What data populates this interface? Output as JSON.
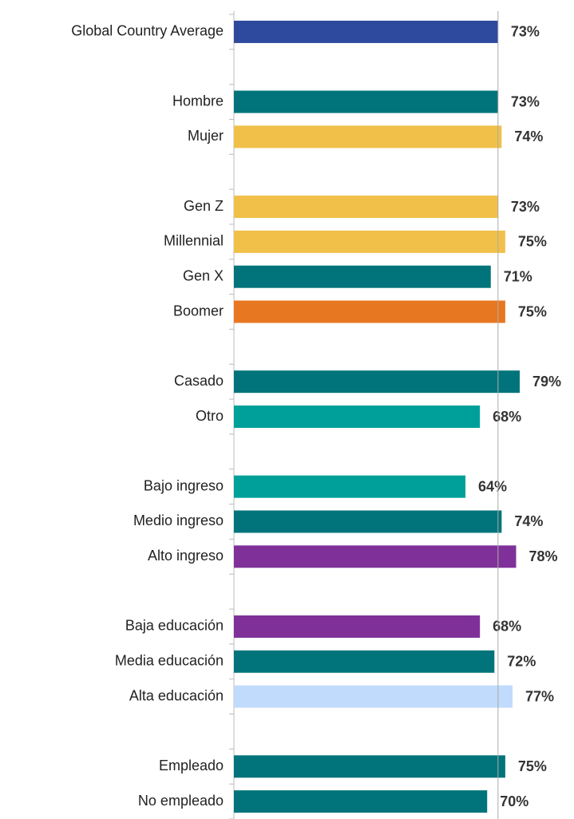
{
  "chart_data": {
    "type": "hbar",
    "categories": [
      "Global Country Average",
      null,
      "Hombre",
      "Mujer",
      null,
      "Gen Z",
      "Millennial",
      "Gen X",
      "Boomer",
      null,
      "Casado",
      "Otro",
      null,
      "Bajo ingreso",
      "Medio ingreso",
      "Alto ingreso",
      null,
      "Baja educación",
      "Media educación",
      "Alta educación",
      null,
      "Empleado",
      "No empleado"
    ],
    "values": [
      73,
      null,
      73,
      74,
      null,
      73,
      75,
      71,
      75,
      null,
      79,
      68,
      null,
      64,
      74,
      78,
      null,
      68,
      72,
      77,
      null,
      75,
      70
    ],
    "value_labels": [
      "73%",
      null,
      "73%",
      "74%",
      null,
      "73%",
      "75%",
      "71%",
      "75%",
      null,
      "79%",
      "68%",
      null,
      "64%",
      "74%",
      "78%",
      null,
      "68%",
      "72%",
      "77%",
      null,
      "75%",
      "70%"
    ],
    "colors": [
      "#2e4a9e",
      null,
      "#00747a",
      "#f0c048",
      null,
      "#f0c048",
      "#f0c048",
      "#00747a",
      "#e87722",
      null,
      "#00747a",
      "#00a09a",
      null,
      "#00a09a",
      "#00747a",
      "#7f3199",
      null,
      "#7f3199",
      "#00747a",
      "#c0dbfc",
      null,
      "#00747a",
      "#00747a"
    ],
    "xlim": [
      0,
      94
    ],
    "reference_value": 73
  }
}
